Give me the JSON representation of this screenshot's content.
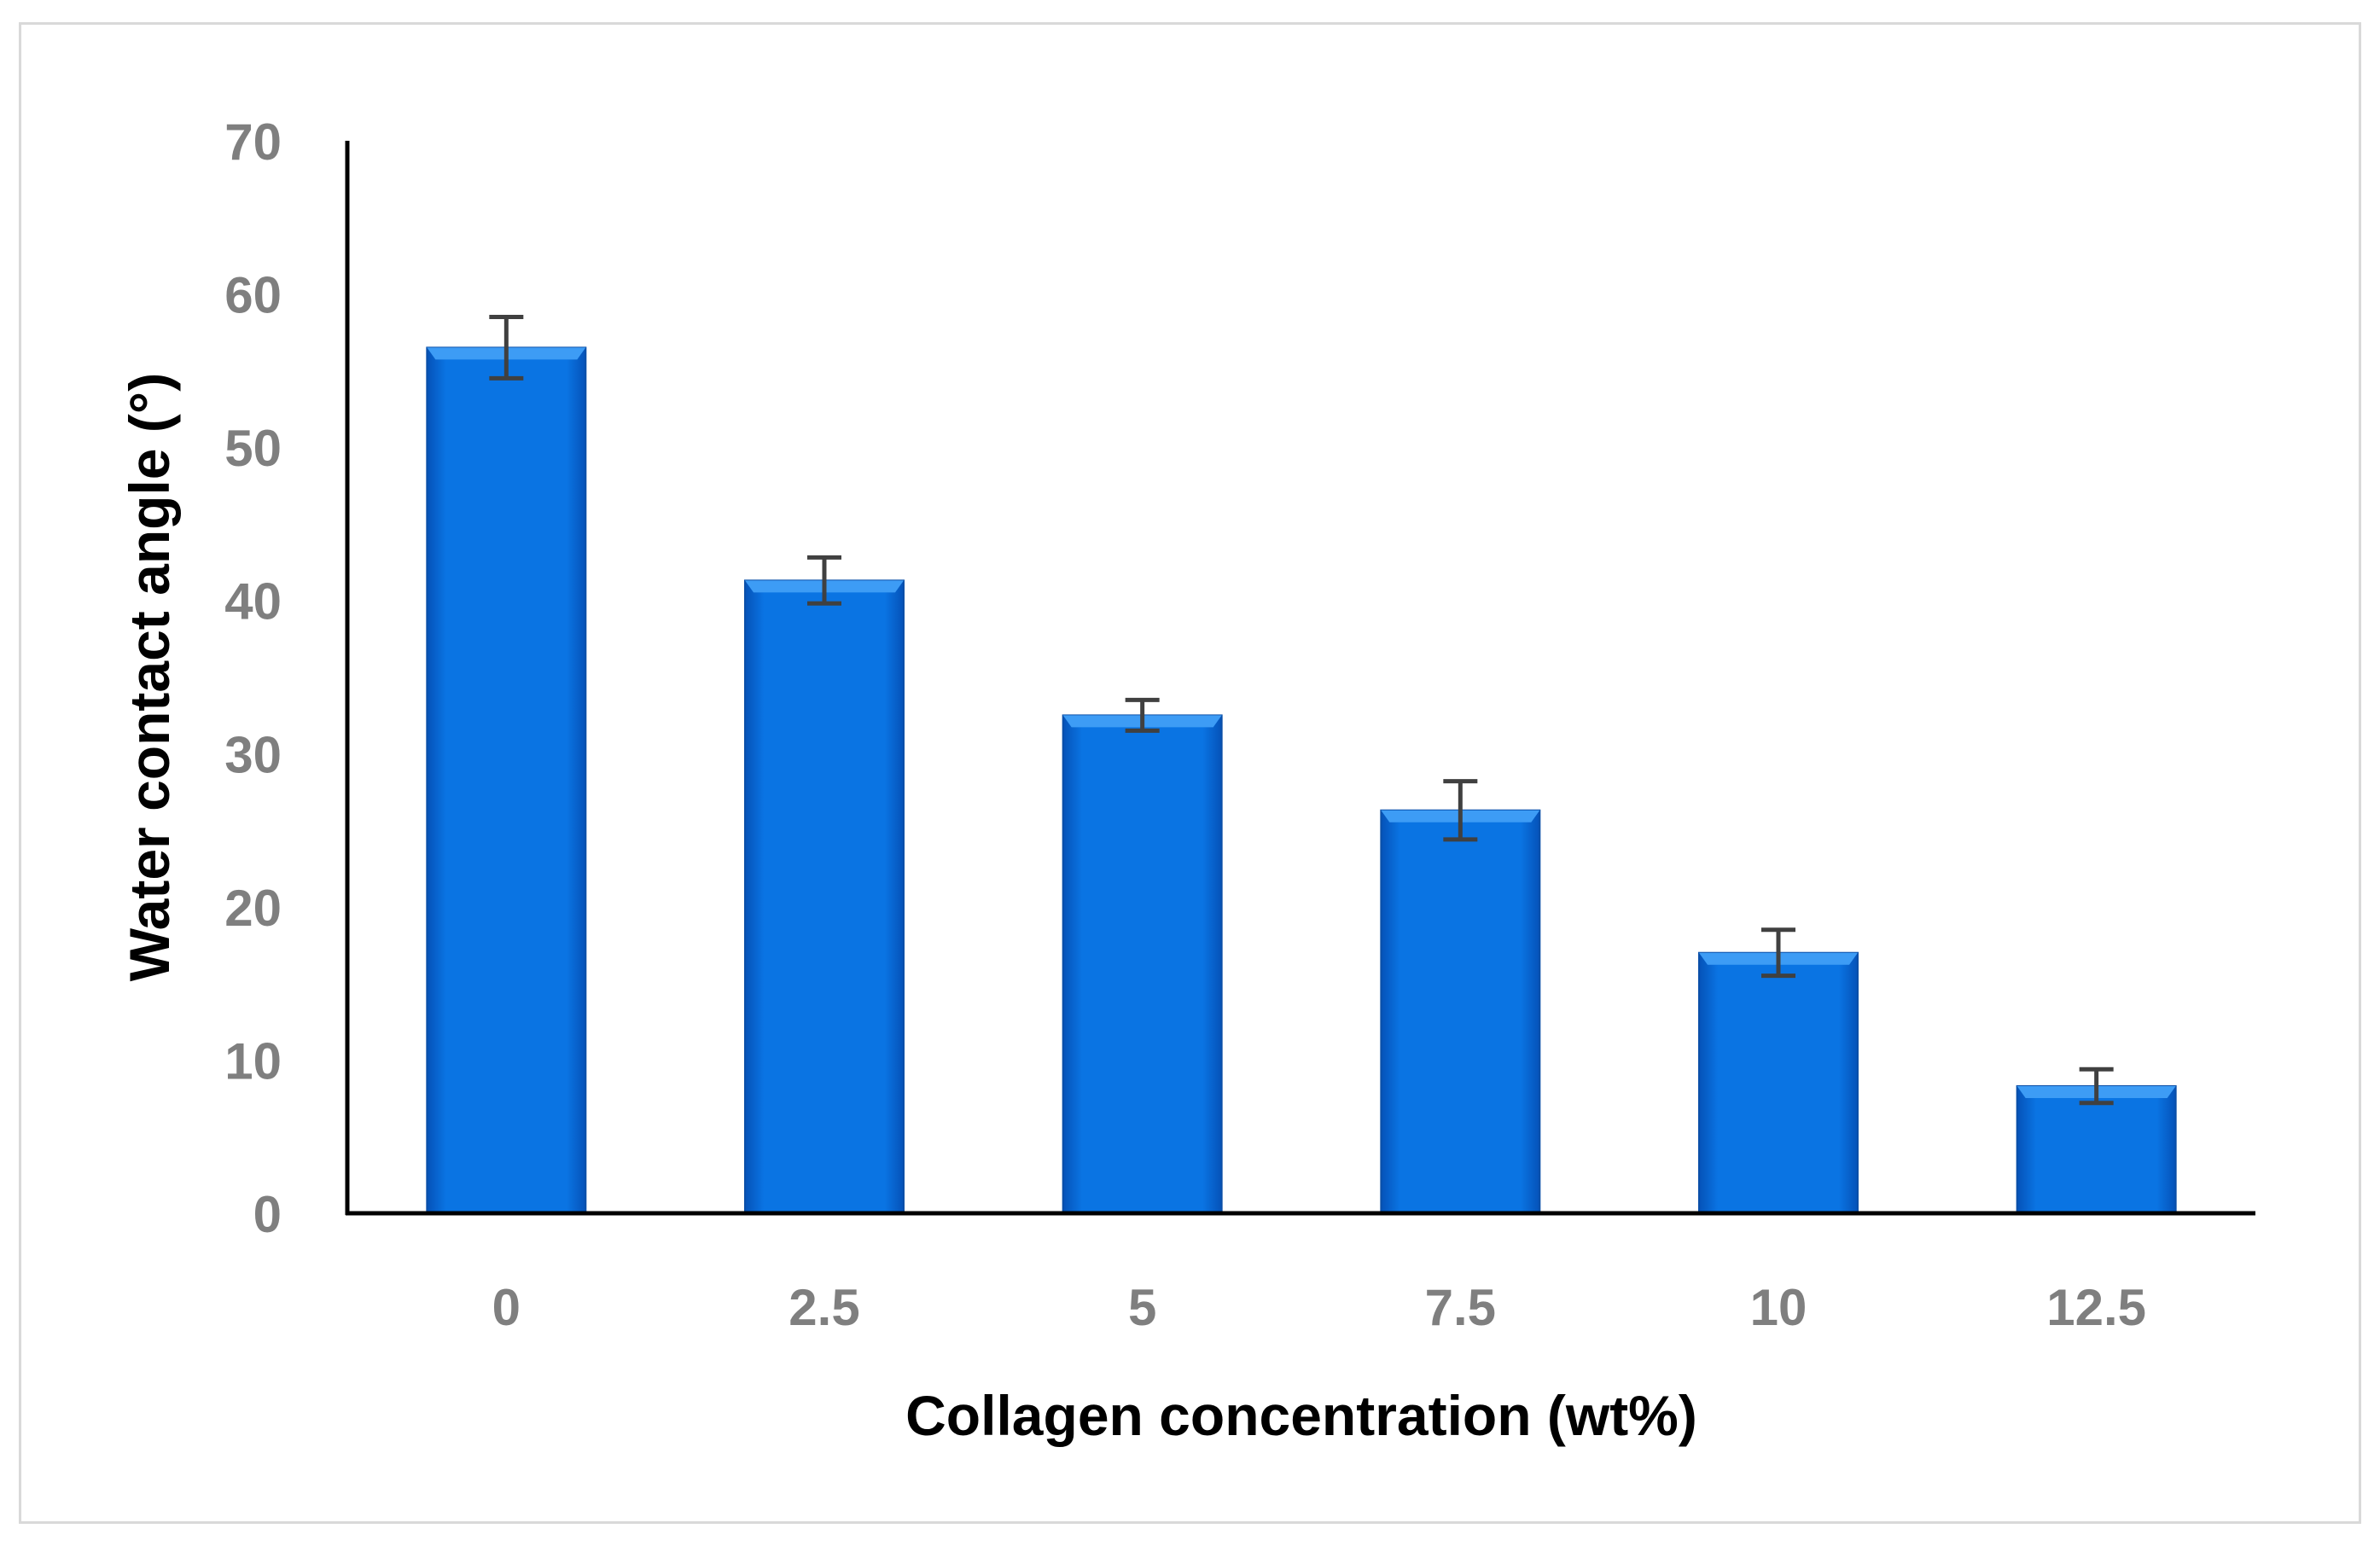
{
  "chart_data": {
    "type": "bar",
    "title": "",
    "xlabel": "Collagen concentration (wt%)",
    "ylabel": "Water contact angle (°)",
    "categories": [
      "0",
      "2.5",
      "5",
      "7.5",
      "10",
      "12.5"
    ],
    "series": [
      {
        "values": [
          56.5,
          41.3,
          32.5,
          26.3,
          17.0,
          8.3
        ],
        "errors": [
          2.0,
          1.5,
          1.0,
          1.9,
          1.5,
          1.1
        ]
      }
    ],
    "ylim": [
      0,
      70
    ],
    "yticks": [
      "0",
      "10",
      "20",
      "30",
      "40",
      "50",
      "60",
      "70"
    ],
    "grid": false,
    "legend": "none",
    "colors": {
      "bar_top": "#3d9cf5",
      "bar_mid": "#0a74e3",
      "bar_dark": "#0552b8",
      "bar_edge": "#0a4fa8",
      "error_bar": "#404040",
      "axis": "#000000",
      "tick_label": "#7f7f7f"
    }
  }
}
